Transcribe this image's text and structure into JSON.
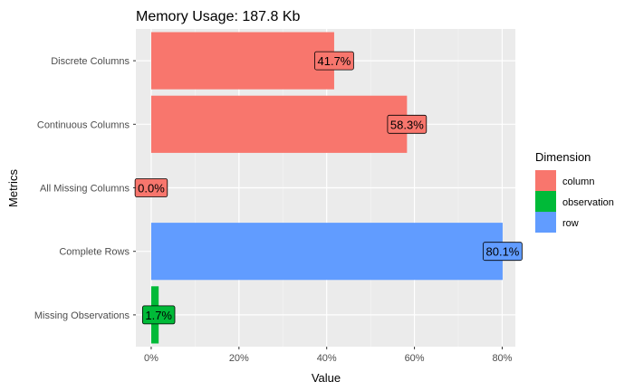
{
  "chart_data": {
    "type": "bar",
    "orientation": "horizontal",
    "title": "Memory Usage: 187.8 Kb",
    "xlabel": "Value",
    "ylabel": "Metrics",
    "xlim": [
      -0.035,
      0.83
    ],
    "x_ticks": [
      0,
      0.2,
      0.4,
      0.6,
      0.8
    ],
    "x_tick_labels": [
      "0%",
      "20%",
      "40%",
      "60%",
      "80%"
    ],
    "grid": true,
    "legend": {
      "title": "Dimension",
      "position": "right",
      "entries": [
        {
          "name": "column",
          "color": "#F8766D"
        },
        {
          "name": "observation",
          "color": "#00BA38"
        },
        {
          "name": "row",
          "color": "#619CFF"
        }
      ]
    },
    "bars": [
      {
        "category": "Discrete Columns",
        "value": 0.417,
        "label": "41.7%",
        "dimension": "column"
      },
      {
        "category": "Continuous Columns",
        "value": 0.583,
        "label": "58.3%",
        "dimension": "column"
      },
      {
        "category": "All Missing Columns",
        "value": 0.0,
        "label": "0.0%",
        "dimension": "column"
      },
      {
        "category": "Complete Rows",
        "value": 0.801,
        "label": "80.1%",
        "dimension": "row"
      },
      {
        "category": "Missing Observations",
        "value": 0.017,
        "label": "1.7%",
        "dimension": "observation"
      }
    ]
  }
}
